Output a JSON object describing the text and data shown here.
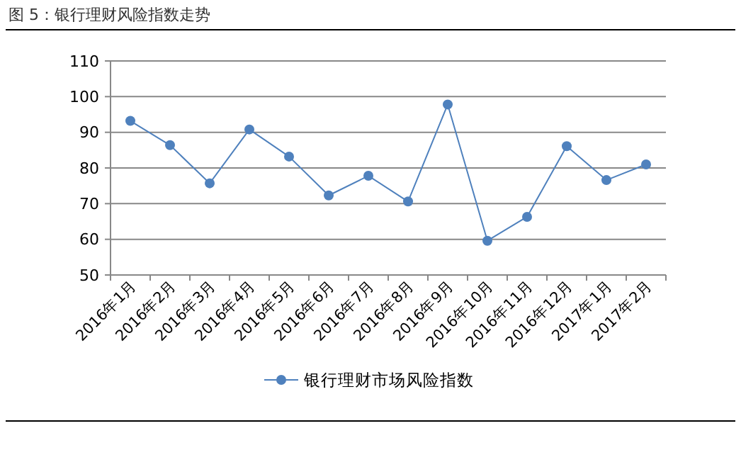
{
  "chart_data": {
    "type": "line",
    "title": "图 5：银行理财风险指数走势",
    "categories": [
      "2016年1月",
      "2016年2月",
      "2016年3月",
      "2016年4月",
      "2016年5月",
      "2016年6月",
      "2016年7月",
      "2016年8月",
      "2016年9月",
      "2016年10月",
      "2016年11月",
      "2016年12月",
      "2017年1月",
      "2017年2月"
    ],
    "series": [
      {
        "name": "银行理财市场风险指数",
        "color": "#4f81bd",
        "values": [
          93.2,
          86.4,
          75.7,
          90.8,
          83.2,
          72.3,
          77.8,
          70.6,
          97.8,
          59.6,
          66.3,
          86.1,
          76.6,
          81.0
        ]
      }
    ],
    "ylim": [
      50,
      110
    ],
    "yticks": [
      50,
      60,
      70,
      80,
      90,
      100,
      110
    ],
    "grid": "y",
    "legend": "bottom",
    "marker": "circle",
    "line_style": "solid"
  }
}
